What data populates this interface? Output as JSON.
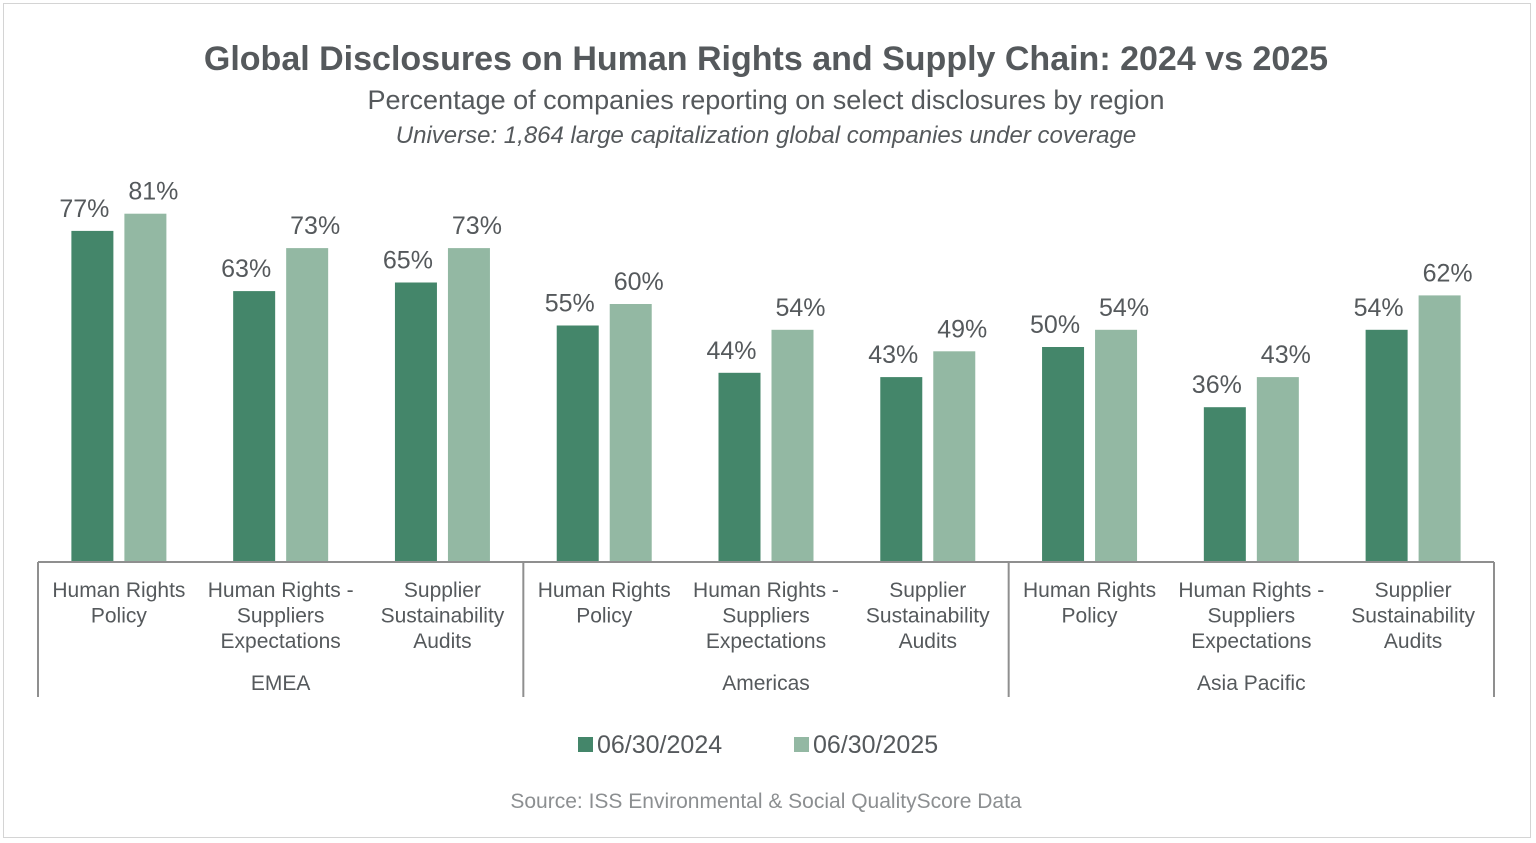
{
  "chart_data": {
    "type": "bar",
    "title": "Global Disclosures on Human Rights and Supply Chain: 2024 vs 2025",
    "subtitle": "Percentage of companies reporting on select disclosures by region",
    "note": "Universe: 1,864 large capitalization global companies under coverage",
    "source": "Source: ISS Environmental & Social QualityScore Data",
    "ylim": [
      0,
      100
    ],
    "grid": false,
    "legend_position": "bottom",
    "groups": [
      {
        "name": "EMEA",
        "categories": [
          {
            "label": [
              "Human Rights",
              "Policy"
            ],
            "values": [
              77,
              81
            ],
            "labels": [
              "77%",
              "81%"
            ]
          },
          {
            "label": [
              "Human Rights -",
              "Suppliers",
              "Expectations"
            ],
            "values": [
              63,
              73
            ],
            "labels": [
              "63%",
              "73%"
            ]
          },
          {
            "label": [
              "Supplier",
              "Sustainability",
              "Audits"
            ],
            "values": [
              65,
              73
            ],
            "labels": [
              "65%",
              "73%"
            ]
          }
        ]
      },
      {
        "name": "Americas",
        "categories": [
          {
            "label": [
              "Human Rights",
              "Policy"
            ],
            "values": [
              55,
              60
            ],
            "labels": [
              "55%",
              "60%"
            ]
          },
          {
            "label": [
              "Human Rights -",
              "Suppliers",
              "Expectations"
            ],
            "values": [
              44,
              54
            ],
            "labels": [
              "44%",
              "54%"
            ]
          },
          {
            "label": [
              "Supplier",
              "Sustainability",
              "Audits"
            ],
            "values": [
              43,
              49
            ],
            "labels": [
              "43%",
              "49%"
            ]
          }
        ]
      },
      {
        "name": "Asia Pacific",
        "categories": [
          {
            "label": [
              "Human Rights",
              "Policy"
            ],
            "values": [
              50,
              54
            ],
            "labels": [
              "50%",
              "54%"
            ]
          },
          {
            "label": [
              "Human Rights -",
              "Suppliers",
              "Expectations"
            ],
            "values": [
              36,
              43
            ],
            "labels": [
              "36%",
              "43%"
            ]
          },
          {
            "label": [
              "Supplier",
              "Sustainability",
              "Audits"
            ],
            "values": [
              54,
              62
            ],
            "labels": [
              "54%",
              "62%"
            ]
          }
        ]
      }
    ],
    "series": [
      {
        "name": "06/30/2024",
        "color": "#44866a"
      },
      {
        "name": "06/30/2025",
        "color": "#93b8a3"
      }
    ]
  }
}
